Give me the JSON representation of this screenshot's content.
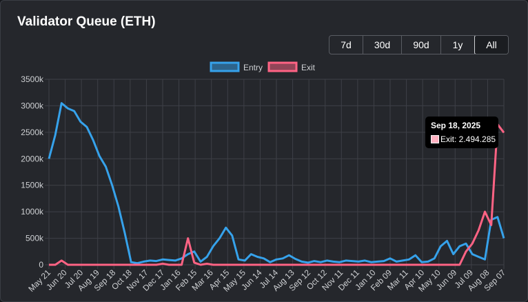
{
  "card": {
    "title": "Validator Queue (ETH)"
  },
  "range_buttons": [
    "7d",
    "30d",
    "90d",
    "1y",
    "All"
  ],
  "range_selected": "All",
  "tooltip": {
    "date": "Sep 18, 2025",
    "series": "Exit",
    "value": "2.494.285",
    "text": "Exit: 2.494.285"
  },
  "colors": {
    "entry": "#36a2eb",
    "exit": "#ff6384",
    "background": "#25272c",
    "grid": "#3e4047",
    "text": "#cfd1d4"
  },
  "chart_data": {
    "type": "line",
    "legend_position": "top",
    "grid": true,
    "ylim": [
      0,
      3500000
    ],
    "y_ticks": [
      {
        "value": 0,
        "label": "0"
      },
      {
        "value": 500000,
        "label": "500k"
      },
      {
        "value": 1000000,
        "label": "1000k"
      },
      {
        "value": 1500000,
        "label": "1500k"
      },
      {
        "value": 2000000,
        "label": "2000k"
      },
      {
        "value": 2500000,
        "label": "2500k"
      },
      {
        "value": 3000000,
        "label": "3000k"
      },
      {
        "value": 3500000,
        "label": "3500k"
      }
    ],
    "x_ticks": [
      "May 21",
      "Jun 20",
      "Jul 20",
      "Aug 19",
      "Sep 18",
      "Oct 18",
      "Nov 17",
      "Dec 17",
      "Jan 16",
      "Feb 15",
      "Mar 16",
      "Apr 15",
      "May 15",
      "Jun 14",
      "Jul 14",
      "Aug 13",
      "Sep 12",
      "Oct 12",
      "Nov 11",
      "Dec 11",
      "Jan 10",
      "Feb 09",
      "Mar 11",
      "Apr 10",
      "May 10",
      "Jun 09",
      "Jul 09",
      "Aug 08",
      "Sep 07"
    ],
    "series": [
      {
        "name": "Entry",
        "color": "#36a2eb",
        "values": [
          2000000,
          2450000,
          3050000,
          2950000,
          2900000,
          2700000,
          2600000,
          2350000,
          2050000,
          1850000,
          1500000,
          1100000,
          600000,
          50000,
          30000,
          60000,
          80000,
          70000,
          100000,
          90000,
          80000,
          120000,
          200000,
          250000,
          60000,
          150000,
          350000,
          500000,
          700000,
          550000,
          100000,
          80000,
          200000,
          150000,
          120000,
          50000,
          100000,
          120000,
          180000,
          110000,
          60000,
          40000,
          70000,
          50000,
          80000,
          60000,
          50000,
          80000,
          70000,
          60000,
          80000,
          50000,
          60000,
          70000,
          120000,
          60000,
          80000,
          100000,
          180000,
          50000,
          60000,
          120000,
          350000,
          450000,
          200000,
          350000,
          400000,
          200000,
          150000,
          100000,
          850000,
          900000,
          500000
        ]
      },
      {
        "name": "Exit",
        "color": "#ff6384",
        "values": [
          0,
          0,
          80000,
          0,
          0,
          0,
          0,
          0,
          0,
          0,
          0,
          0,
          0,
          0,
          0,
          0,
          0,
          0,
          20000,
          0,
          0,
          0,
          500000,
          40000,
          0,
          20000,
          0,
          0,
          0,
          0,
          0,
          0,
          0,
          0,
          0,
          0,
          0,
          0,
          0,
          0,
          0,
          0,
          0,
          0,
          0,
          0,
          0,
          0,
          0,
          0,
          0,
          0,
          0,
          0,
          0,
          0,
          0,
          0,
          0,
          0,
          0,
          0,
          0,
          0,
          0,
          0,
          250000,
          400000,
          650000,
          1000000,
          750000,
          2650000,
          2494285
        ]
      }
    ]
  }
}
